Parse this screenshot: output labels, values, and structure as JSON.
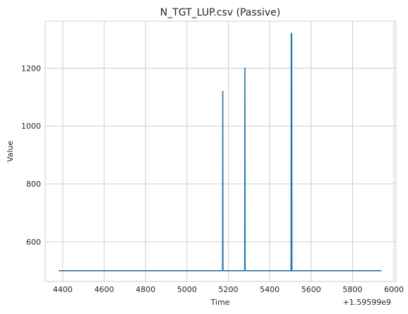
{
  "chart_data": {
    "type": "line",
    "title": "N_TGT_LUP.csv (Passive)",
    "xlabel": "Time",
    "ylabel": "Value",
    "x_offset_label": "+1.59599e9",
    "xlim": [
      4315,
      6010
    ],
    "ylim": [
      463,
      1362
    ],
    "xticks": [
      4400,
      4600,
      4800,
      5000,
      5200,
      5400,
      5600,
      5800,
      6000
    ],
    "yticks": [
      600,
      800,
      1000,
      1200
    ],
    "grid": true,
    "series_color": "#1f77b4",
    "series": [
      {
        "x": [
          4380,
          5172,
          5173,
          5174,
          5279,
          5280,
          5281,
          5503,
          5504,
          5505,
          5506,
          5507,
          5940
        ],
        "y": [
          500,
          500,
          1120,
          500,
          500,
          1200,
          500,
          500,
          1320,
          500,
          1320,
          500,
          500
        ]
      }
    ]
  }
}
